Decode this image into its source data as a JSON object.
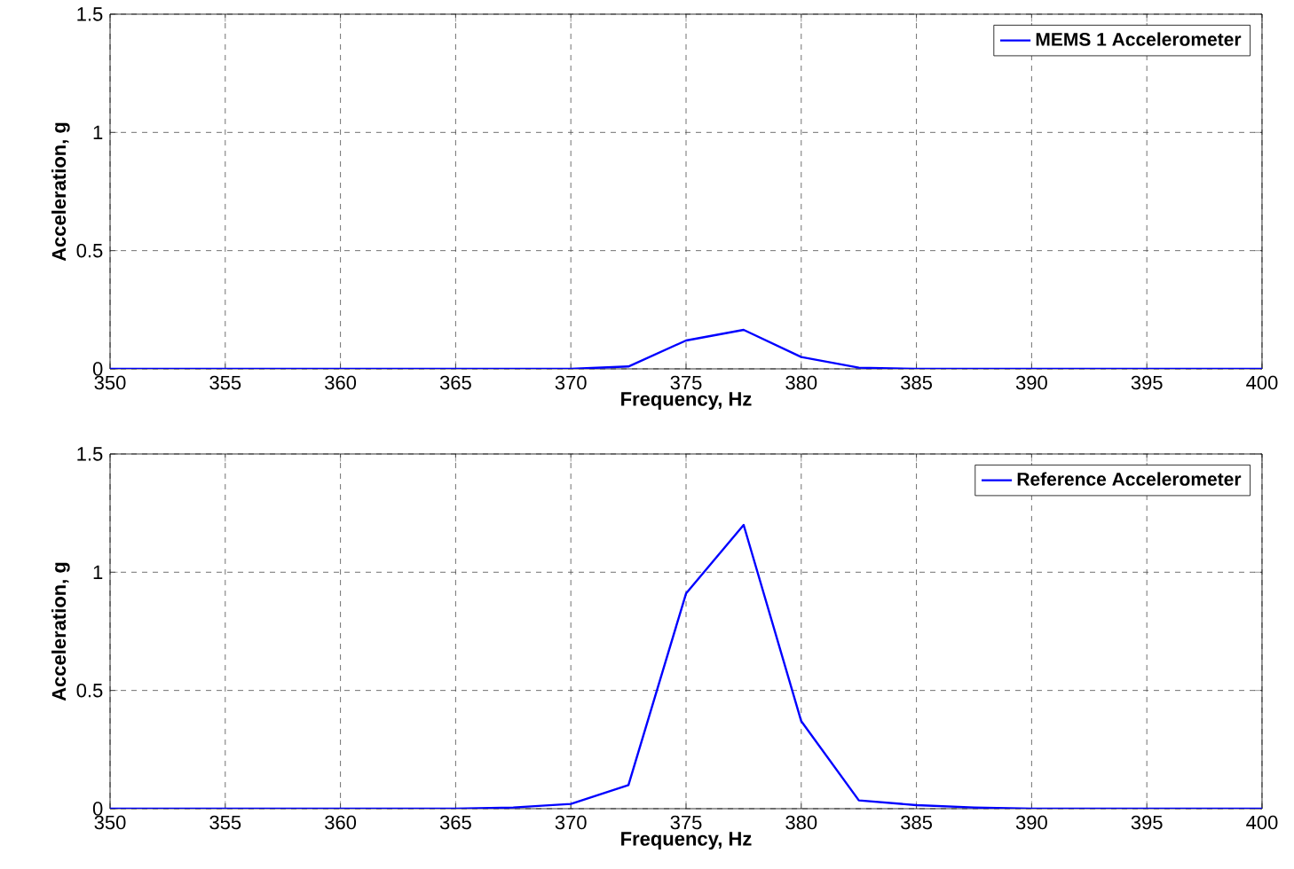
{
  "chart_data": [
    {
      "type": "line",
      "xlabel": "Frequency, Hz",
      "ylabel": "Acceleration, g",
      "x": [
        350,
        352.5,
        355,
        357.5,
        360,
        362.5,
        365,
        367.5,
        370,
        372.5,
        375,
        377.5,
        380,
        382.5,
        385,
        387.5,
        390,
        392.5,
        395,
        397.5,
        400
      ],
      "series": [
        {
          "name": "MEMS 1 Accelerometer",
          "color": "#0000ff",
          "values": [
            0,
            0,
            0,
            0,
            0,
            0,
            0,
            0,
            0,
            0.01,
            0.12,
            0.165,
            0.05,
            0.005,
            0,
            0,
            0,
            0,
            0,
            0,
            0
          ]
        }
      ],
      "xlim": [
        350,
        400
      ],
      "xticks": [
        350,
        355,
        360,
        365,
        370,
        375,
        380,
        385,
        390,
        395,
        400
      ],
      "ylim": [
        0,
        1.5
      ],
      "yticks": [
        0,
        0.5,
        1,
        1.5
      ],
      "grid": true,
      "legend": "top right",
      "marker": "none",
      "line_style": "solid"
    },
    {
      "type": "line",
      "xlabel": "Frequency, Hz",
      "ylabel": "Acceleration, g",
      "x": [
        350,
        352.5,
        355,
        357.5,
        360,
        362.5,
        365,
        367.5,
        370,
        372.5,
        375,
        377.5,
        380,
        382.5,
        385,
        387.5,
        390,
        392.5,
        395,
        397.5,
        400
      ],
      "series": [
        {
          "name": "Reference Accelerometer",
          "color": "#0000ff",
          "values": [
            0,
            0,
            0,
            0,
            0,
            0,
            0,
            0.005,
            0.02,
            0.1,
            0.91,
            1.2,
            0.37,
            0.035,
            0.015,
            0.005,
            0,
            0,
            0,
            0,
            0
          ]
        }
      ],
      "xlim": [
        350,
        400
      ],
      "xticks": [
        350,
        355,
        360,
        365,
        370,
        375,
        380,
        385,
        390,
        395,
        400
      ],
      "ylim": [
        0,
        1.5
      ],
      "yticks": [
        0,
        0.5,
        1,
        1.5
      ],
      "grid": true,
      "legend": "top right",
      "marker": "none",
      "line_style": "solid"
    }
  ]
}
